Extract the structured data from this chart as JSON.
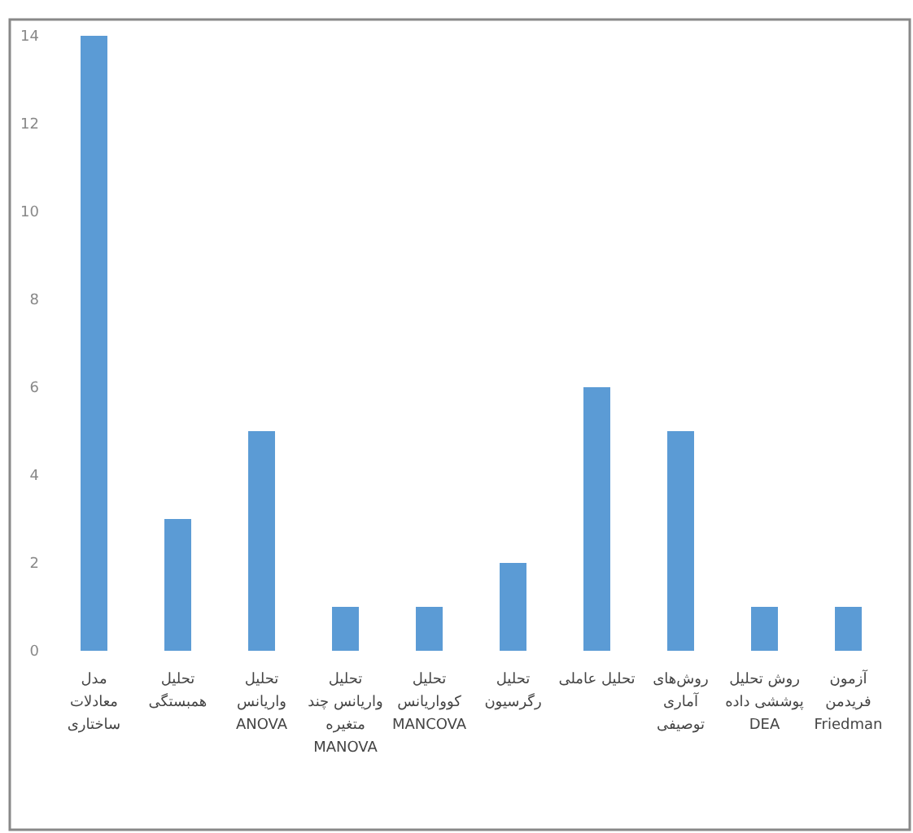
{
  "chart_data": {
    "type": "bar",
    "categories": [
      "مدل\nمعادلات\nساختاری",
      "تحلیل\nهمبستگی",
      "تحلیل\nواریانس\nANOVA",
      "تحلیل\nواریانس چند\nمتغیره\nMANOVA",
      "تحلیل\nکوواریانس\nMANCOVA",
      "تحلیل\nرگرسیون",
      "تحلیل عاملی",
      "روش‌های\nآماری\nتوصیفی",
      "روش تحلیل\nپوششی داده\nDEA",
      "آزمون\nفریدمن\nFriedman"
    ],
    "values": [
      14,
      3,
      5,
      1,
      1,
      2,
      6,
      5,
      1,
      1
    ],
    "color": "#5b9bd5",
    "ylim": [
      0,
      14
    ],
    "yticks": [
      0,
      2,
      4,
      6,
      8,
      10,
      12,
      14
    ],
    "grid": false
  }
}
